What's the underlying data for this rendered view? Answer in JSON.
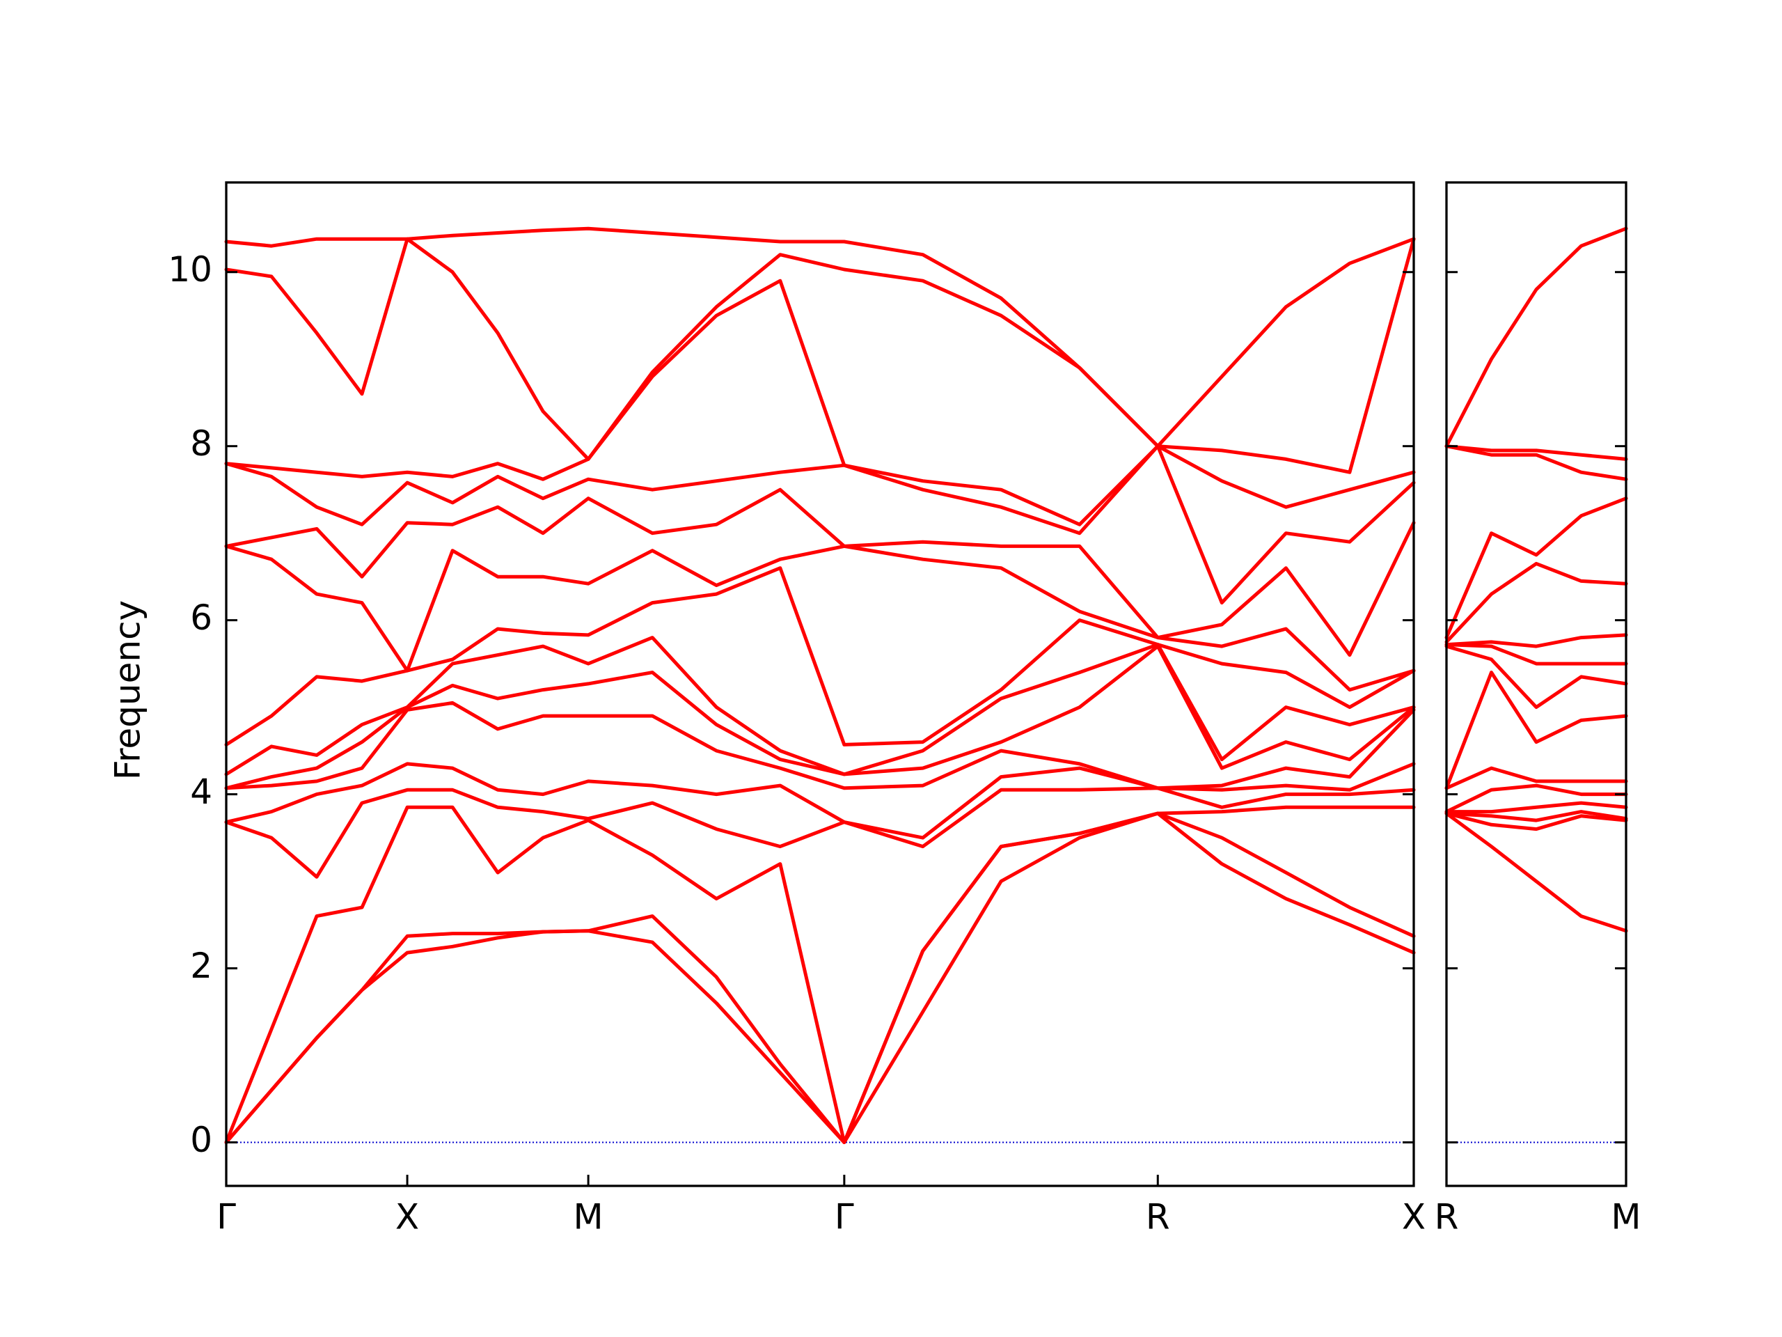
{
  "chart_data": [
    {
      "type": "line",
      "ylabel": "Frequency",
      "color": "#ff0000",
      "hline": {
        "value": 0,
        "color": "#0000cd"
      },
      "xlim": [
        0,
        3.28
      ],
      "ylim": [
        -0.5,
        11.03
      ],
      "xticks": [
        {
          "value": 0,
          "label": "Γ"
        },
        {
          "value": 0.5,
          "label": "X"
        },
        {
          "value": 1.0,
          "label": "M"
        },
        {
          "value": 1.707,
          "label": "Γ"
        },
        {
          "value": 2.573,
          "label": "R"
        },
        {
          "value": 3.28,
          "label": "X"
        }
      ],
      "yticks": [
        0,
        2,
        4,
        6,
        8,
        10
      ],
      "x": [
        0,
        0.125,
        0.25,
        0.375,
        0.5,
        0.625,
        0.75,
        0.875,
        1.0,
        1.177,
        1.354,
        1.53,
        1.707,
        1.924,
        2.14,
        2.357,
        2.573,
        2.75,
        2.927,
        3.103,
        3.28
      ],
      "series": [
        {
          "values": [
            0,
            0.6,
            1.2,
            1.75,
            2.18,
            2.25,
            2.35,
            2.42,
            2.43,
            2.3,
            1.6,
            0.8,
            0,
            1.5,
            3.0,
            3.5,
            3.78,
            3.2,
            2.8,
            2.5,
            2.18
          ]
        },
        {
          "values": [
            0,
            0.6,
            1.2,
            1.75,
            2.37,
            2.4,
            2.4,
            2.42,
            2.43,
            2.6,
            1.9,
            0.9,
            0,
            2.2,
            3.4,
            3.55,
            3.78,
            3.5,
            3.1,
            2.7,
            2.37
          ]
        },
        {
          "values": [
            0,
            1.3,
            2.6,
            2.7,
            3.85,
            3.85,
            3.1,
            3.5,
            3.7,
            3.3,
            2.8,
            3.2,
            0,
            2.2,
            3.4,
            3.55,
            3.78,
            3.8,
            3.85,
            3.85,
            3.85
          ]
        },
        {
          "values": [
            3.68,
            3.5,
            3.05,
            3.9,
            4.05,
            4.05,
            3.85,
            3.8,
            3.72,
            3.9,
            3.6,
            3.4,
            3.68,
            3.4,
            4.05,
            4.05,
            4.07,
            3.85,
            4.0,
            4.0,
            4.05
          ]
        },
        {
          "values": [
            3.68,
            3.8,
            4.0,
            4.1,
            4.35,
            4.3,
            4.05,
            4.0,
            4.15,
            4.1,
            4.0,
            4.1,
            3.68,
            3.5,
            4.2,
            4.3,
            4.07,
            4.05,
            4.1,
            4.05,
            4.35
          ]
        },
        {
          "values": [
            4.07,
            4.1,
            4.15,
            4.3,
            4.97,
            5.05,
            4.75,
            4.9,
            4.9,
            4.9,
            4.5,
            4.3,
            4.07,
            4.1,
            4.5,
            4.35,
            4.07,
            4.1,
            4.3,
            4.2,
            4.97
          ]
        },
        {
          "values": [
            4.07,
            4.2,
            4.3,
            4.6,
            5.0,
            5.25,
            5.1,
            5.2,
            5.27,
            5.4,
            4.8,
            4.4,
            4.23,
            4.3,
            4.6,
            5.0,
            5.7,
            4.3,
            4.6,
            4.4,
            5.0
          ]
        },
        {
          "values": [
            4.23,
            4.55,
            4.45,
            4.8,
            5.0,
            5.5,
            5.6,
            5.7,
            5.5,
            5.8,
            5.0,
            4.5,
            4.23,
            4.5,
            5.1,
            5.4,
            5.72,
            4.4,
            5.0,
            4.8,
            5.0
          ]
        },
        {
          "values": [
            4.57,
            4.9,
            5.35,
            5.3,
            5.42,
            5.55,
            5.9,
            5.85,
            5.83,
            6.2,
            6.3,
            6.6,
            4.57,
            4.6,
            5.2,
            6.0,
            5.72,
            5.5,
            5.4,
            5.0,
            5.42
          ]
        },
        {
          "values": [
            6.85,
            6.7,
            6.3,
            6.2,
            5.42,
            6.8,
            6.5,
            6.5,
            6.42,
            6.8,
            6.4,
            6.7,
            6.85,
            6.7,
            6.6,
            6.1,
            5.8,
            5.7,
            5.9,
            5.2,
            5.42
          ]
        },
        {
          "values": [
            6.85,
            6.95,
            7.05,
            6.5,
            7.12,
            7.1,
            7.3,
            7.0,
            7.4,
            7.0,
            7.1,
            7.5,
            6.85,
            6.9,
            6.85,
            6.85,
            5.8,
            5.95,
            6.6,
            5.6,
            7.12
          ]
        },
        {
          "values": [
            7.8,
            7.65,
            7.3,
            7.1,
            7.58,
            7.35,
            7.65,
            7.4,
            7.62,
            7.5,
            7.6,
            7.7,
            7.78,
            7.5,
            7.3,
            7.0,
            8.0,
            6.2,
            7.0,
            6.9,
            7.58
          ]
        },
        {
          "values": [
            7.8,
            7.75,
            7.7,
            7.65,
            7.7,
            7.65,
            7.8,
            7.62,
            7.85,
            8.8,
            9.5,
            9.9,
            7.78,
            7.6,
            7.5,
            7.1,
            8.0,
            7.6,
            7.3,
            7.5,
            7.7
          ]
        },
        {
          "values": [
            10.03,
            9.95,
            9.3,
            8.6,
            10.38,
            10.0,
            9.3,
            8.4,
            7.85,
            8.85,
            9.6,
            10.2,
            10.03,
            9.9,
            9.5,
            8.9,
            8.0,
            7.95,
            7.85,
            7.7,
            10.38
          ]
        },
        {
          "values": [
            10.35,
            10.3,
            10.38,
            10.38,
            10.38,
            10.42,
            10.45,
            10.48,
            10.5,
            10.45,
            10.4,
            10.35,
            10.35,
            10.2,
            9.7,
            8.9,
            8.0,
            8.8,
            9.6,
            10.1,
            10.38
          ]
        }
      ]
    },
    {
      "type": "line",
      "color": "#ff0000",
      "ytick_labels": false,
      "hline": {
        "value": 0,
        "color": "#0000cd"
      },
      "xlim": [
        0,
        0.5
      ],
      "ylim": [
        -0.5,
        11.03
      ],
      "xticks": [
        {
          "value": 0,
          "label": "R"
        },
        {
          "value": 0.5,
          "label": "M"
        }
      ],
      "yticks": [
        0,
        2,
        4,
        6,
        8,
        10
      ],
      "x": [
        0,
        0.125,
        0.25,
        0.375,
        0.5
      ],
      "series": [
        {
          "values": [
            3.78,
            3.4,
            3.0,
            2.6,
            2.43
          ]
        },
        {
          "values": [
            3.78,
            3.65,
            3.6,
            3.75,
            3.7
          ]
        },
        {
          "values": [
            3.78,
            3.75,
            3.7,
            3.8,
            3.72
          ]
        },
        {
          "values": [
            3.8,
            3.8,
            3.85,
            3.9,
            3.85
          ]
        },
        {
          "values": [
            3.8,
            4.05,
            4.1,
            4.0,
            4.0
          ]
        },
        {
          "values": [
            4.07,
            4.3,
            4.15,
            4.15,
            4.15
          ]
        },
        {
          "values": [
            4.07,
            5.4,
            4.6,
            4.85,
            4.9
          ]
        },
        {
          "values": [
            5.7,
            5.55,
            5.0,
            5.35,
            5.27
          ]
        },
        {
          "values": [
            5.72,
            5.7,
            5.5,
            5.5,
            5.5
          ]
        },
        {
          "values": [
            5.72,
            5.75,
            5.7,
            5.8,
            5.83
          ]
        },
        {
          "values": [
            5.75,
            6.3,
            6.65,
            6.45,
            6.42
          ]
        },
        {
          "values": [
            5.8,
            7.0,
            6.75,
            7.2,
            7.4
          ]
        },
        {
          "values": [
            8.0,
            7.9,
            7.9,
            7.7,
            7.62
          ]
        },
        {
          "values": [
            8.0,
            7.95,
            7.95,
            7.9,
            7.85
          ]
        },
        {
          "values": [
            8.0,
            9.0,
            9.8,
            10.3,
            10.5
          ]
        }
      ]
    }
  ]
}
